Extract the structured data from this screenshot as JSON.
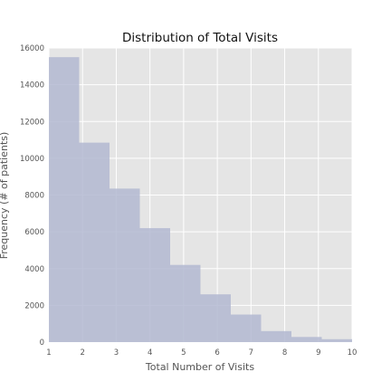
{
  "chart_data": {
    "type": "bar",
    "subtype": "histogram",
    "title": "Distribution of Total Visits",
    "xlabel": "Total Number of Visits",
    "ylabel": "Frequency (# of patients)",
    "xlim": [
      1,
      10
    ],
    "ylim": [
      0,
      16000
    ],
    "x_ticks": [
      1,
      2,
      3,
      4,
      5,
      6,
      7,
      8,
      9,
      10
    ],
    "y_ticks": [
      0,
      2000,
      4000,
      6000,
      8000,
      10000,
      12000,
      14000,
      16000
    ],
    "grid": true,
    "bar_color": "#b3b9d1",
    "background_color": "#e5e5e5",
    "bins": [
      {
        "x0": 1.0,
        "x1": 1.9,
        "value": 15500
      },
      {
        "x0": 1.9,
        "x1": 2.8,
        "value": 10850
      },
      {
        "x0": 2.8,
        "x1": 3.7,
        "value": 8350
      },
      {
        "x0": 3.7,
        "x1": 4.6,
        "value": 6200
      },
      {
        "x0": 4.6,
        "x1": 5.5,
        "value": 4200
      },
      {
        "x0": 5.5,
        "x1": 6.4,
        "value": 2600
      },
      {
        "x0": 6.4,
        "x1": 7.3,
        "value": 1500
      },
      {
        "x0": 7.3,
        "x1": 8.2,
        "value": 600
      },
      {
        "x0": 8.2,
        "x1": 9.1,
        "value": 280
      },
      {
        "x0": 9.1,
        "x1": 10.0,
        "value": 160
      }
    ]
  }
}
